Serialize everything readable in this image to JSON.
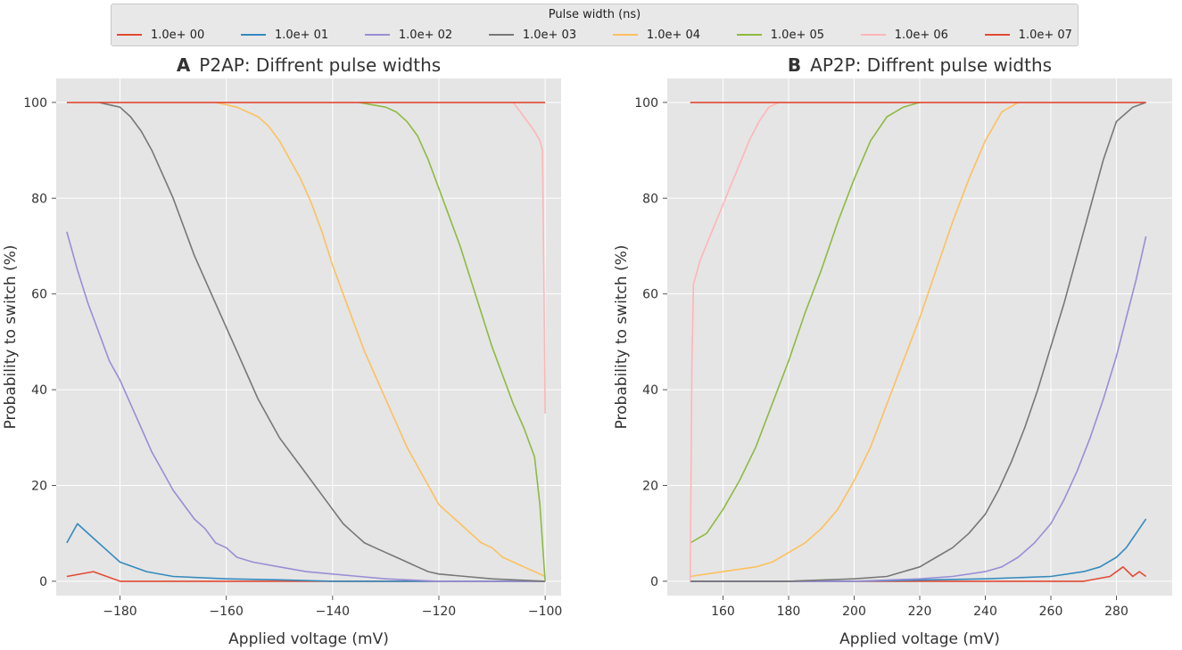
{
  "legend": {
    "title": "Pulse width (ns)",
    "entries": [
      {
        "label": "1.0e+ 00",
        "color": "#e24a33"
      },
      {
        "label": "1.0e+ 01",
        "color": "#348abd"
      },
      {
        "label": "1.0e+ 02",
        "color": "#988ed5"
      },
      {
        "label": "1.0e+ 03",
        "color": "#777777"
      },
      {
        "label": "1.0e+ 04",
        "color": "#fbc15e"
      },
      {
        "label": "1.0e+ 05",
        "color": "#8eba42"
      },
      {
        "label": "1.0e+ 06",
        "color": "#ffb5b8"
      },
      {
        "label": "1.0e+ 07",
        "color": "#e24a33"
      }
    ]
  },
  "chart_data": [
    {
      "type": "line",
      "panel_letter": "A",
      "title": "P2AP: Diffrent pulse widths",
      "xlabel": "Applied voltage (mV)",
      "ylabel": "Probability to switch (%)",
      "xlim": [
        -192,
        -97
      ],
      "ylim": [
        -3,
        105
      ],
      "xticks": [
        -180,
        -160,
        -140,
        -120,
        -100
      ],
      "xtick_labels": [
        "−180",
        "−160",
        "−140",
        "−120",
        "−100"
      ],
      "yticks": [
        0,
        20,
        40,
        60,
        80,
        100
      ],
      "ytick_labels": [
        "0",
        "20",
        "40",
        "60",
        "80",
        "100"
      ],
      "grid": true,
      "series": [
        {
          "name": "1.0e+ 00",
          "color": "#e24a33",
          "x": [
            -190,
            -185,
            -180,
            -170,
            -160,
            -150,
            -140,
            -130,
            -120,
            -110,
            -100
          ],
          "y": [
            1,
            2,
            0,
            0,
            0,
            0,
            0,
            0,
            0,
            0,
            0
          ]
        },
        {
          "name": "1.0e+ 01",
          "color": "#348abd",
          "x": [
            -190,
            -188,
            -185,
            -182,
            -180,
            -175,
            -170,
            -160,
            -150,
            -140,
            -120,
            -100
          ],
          "y": [
            8,
            12,
            9,
            6,
            4,
            2,
            1,
            0.5,
            0.3,
            0,
            0,
            0
          ]
        },
        {
          "name": "1.0e+ 02",
          "color": "#988ed5",
          "x": [
            -190,
            -188,
            -186,
            -184,
            -182,
            -180,
            -178,
            -176,
            -174,
            -172,
            -170,
            -168,
            -166,
            -164,
            -162,
            -160,
            -158,
            -155,
            -150,
            -145,
            -140,
            -135,
            -130,
            -120,
            -110,
            -100
          ],
          "y": [
            73,
            65,
            58,
            52,
            46,
            42,
            37,
            32,
            27,
            23,
            19,
            16,
            13,
            11,
            8,
            7,
            5,
            4,
            3,
            2,
            1.5,
            1,
            0.5,
            0,
            0,
            0
          ]
        },
        {
          "name": "1.0e+ 03",
          "color": "#777777",
          "x": [
            -184,
            -180,
            -178,
            -176,
            -174,
            -172,
            -170,
            -168,
            -166,
            -164,
            -162,
            -160,
            -158,
            -156,
            -154,
            -152,
            -150,
            -148,
            -146,
            -144,
            -142,
            -140,
            -138,
            -136,
            -134,
            -132,
            -130,
            -128,
            -126,
            -124,
            -122,
            -120,
            -115,
            -110,
            -100
          ],
          "y": [
            100,
            99,
            97,
            94,
            90,
            85,
            80,
            74,
            68,
            63,
            58,
            53,
            48,
            43,
            38,
            34,
            30,
            27,
            24,
            21,
            18,
            15,
            12,
            10,
            8,
            7,
            6,
            5,
            4,
            3,
            2,
            1.5,
            1,
            0.5,
            0
          ]
        },
        {
          "name": "1.0e+ 04",
          "color": "#fbc15e",
          "x": [
            -162,
            -158,
            -156,
            -154,
            -152,
            -150,
            -148,
            -146,
            -144,
            -142,
            -140,
            -138,
            -136,
            -134,
            -132,
            -130,
            -128,
            -126,
            -124,
            -122,
            -120,
            -118,
            -116,
            -114,
            -112,
            -110,
            -108,
            -106,
            -104,
            -102,
            -100
          ],
          "y": [
            100,
            99,
            98,
            97,
            95,
            92,
            88,
            84,
            79,
            73,
            66,
            60,
            54,
            48,
            43,
            38,
            33,
            28,
            24,
            20,
            16,
            14,
            12,
            10,
            8,
            7,
            5,
            4,
            3,
            2,
            1
          ]
        },
        {
          "name": "1.0e+ 05",
          "color": "#8eba42",
          "x": [
            -135,
            -130,
            -128,
            -126,
            -124,
            -122,
            -120,
            -118,
            -116,
            -114,
            -112,
            -110,
            -108,
            -106,
            -104,
            -102,
            -101,
            -100
          ],
          "y": [
            100,
            99,
            98,
            96,
            93,
            88,
            82,
            76,
            70,
            63,
            56,
            49,
            43,
            37,
            32,
            26,
            16,
            0
          ]
        },
        {
          "name": "1.0e+ 06",
          "color": "#ffb5b8",
          "x": [
            -106,
            -104,
            -102,
            -101,
            -100.5,
            -100.2,
            -100
          ],
          "y": [
            100,
            97,
            94,
            92,
            90,
            60,
            35
          ]
        },
        {
          "name": "1.0e+ 07",
          "color": "#e24a33",
          "x": [
            -190,
            -100
          ],
          "y": [
            100,
            100
          ]
        }
      ]
    },
    {
      "type": "line",
      "panel_letter": "B",
      "title": "AP2P: Diffrent pulse widths",
      "xlabel": "Applied voltage (mV)",
      "ylabel": "Probability to switch (%)",
      "xlim": [
        143,
        297
      ],
      "ylim": [
        -3,
        105
      ],
      "xticks": [
        160,
        180,
        200,
        220,
        240,
        260,
        280
      ],
      "xtick_labels": [
        "160",
        "180",
        "200",
        "220",
        "240",
        "260",
        "280"
      ],
      "yticks": [
        0,
        20,
        40,
        60,
        80,
        100
      ],
      "ytick_labels": [
        "0",
        "20",
        "40",
        "60",
        "80",
        "100"
      ],
      "grid": true,
      "series": [
        {
          "name": "1.0e+ 00",
          "color": "#e24a33",
          "x": [
            150,
            200,
            250,
            270,
            278,
            282,
            285,
            287,
            289
          ],
          "y": [
            0,
            0,
            0,
            0,
            1,
            3,
            1,
            2,
            1
          ]
        },
        {
          "name": "1.0e+ 01",
          "color": "#348abd",
          "x": [
            150,
            200,
            240,
            260,
            270,
            275,
            280,
            283,
            286,
            289
          ],
          "y": [
            0,
            0,
            0.5,
            1,
            2,
            3,
            5,
            7,
            10,
            13
          ]
        },
        {
          "name": "1.0e+ 02",
          "color": "#988ed5",
          "x": [
            150,
            200,
            220,
            230,
            240,
            245,
            250,
            255,
            260,
            264,
            268,
            272,
            276,
            280,
            283,
            286,
            289
          ],
          "y": [
            0,
            0,
            0.5,
            1,
            2,
            3,
            5,
            8,
            12,
            17,
            23,
            30,
            38,
            47,
            55,
            63,
            72
          ]
        },
        {
          "name": "1.0e+ 03",
          "color": "#777777",
          "x": [
            150,
            180,
            200,
            210,
            215,
            220,
            225,
            230,
            235,
            240,
            244,
            248,
            252,
            256,
            260,
            264,
            268,
            272,
            276,
            280,
            285,
            289
          ],
          "y": [
            0,
            0,
            0.5,
            1,
            2,
            3,
            5,
            7,
            10,
            14,
            19,
            25,
            32,
            40,
            49,
            58,
            68,
            78,
            88,
            96,
            99,
            100
          ]
        },
        {
          "name": "1.0e+ 04",
          "color": "#fbc15e",
          "x": [
            150,
            160,
            170,
            175,
            180,
            185,
            190,
            195,
            200,
            205,
            210,
            215,
            220,
            225,
            230,
            235,
            240,
            245,
            250
          ],
          "y": [
            1,
            2,
            3,
            4,
            6,
            8,
            11,
            15,
            21,
            28,
            37,
            46,
            55,
            65,
            75,
            84,
            92,
            98,
            100
          ]
        },
        {
          "name": "1.0e+ 05",
          "color": "#8eba42",
          "x": [
            150,
            155,
            160,
            165,
            170,
            175,
            180,
            185,
            190,
            195,
            200,
            205,
            210,
            215,
            220
          ],
          "y": [
            8,
            10,
            15,
            21,
            28,
            37,
            46,
            56,
            65,
            75,
            84,
            92,
            97,
            99,
            100
          ]
        },
        {
          "name": "1.0e+ 06",
          "color": "#ffb5b8",
          "x": [
            150,
            150.5,
            151,
            153,
            156,
            159,
            162,
            165,
            168,
            171,
            174,
            177
          ],
          "y": [
            0,
            45,
            62,
            67,
            72,
            77,
            82,
            87,
            92,
            96,
            99,
            100
          ]
        },
        {
          "name": "1.0e+ 07",
          "color": "#e24a33",
          "x": [
            150,
            289
          ],
          "y": [
            100,
            100
          ]
        }
      ]
    }
  ]
}
